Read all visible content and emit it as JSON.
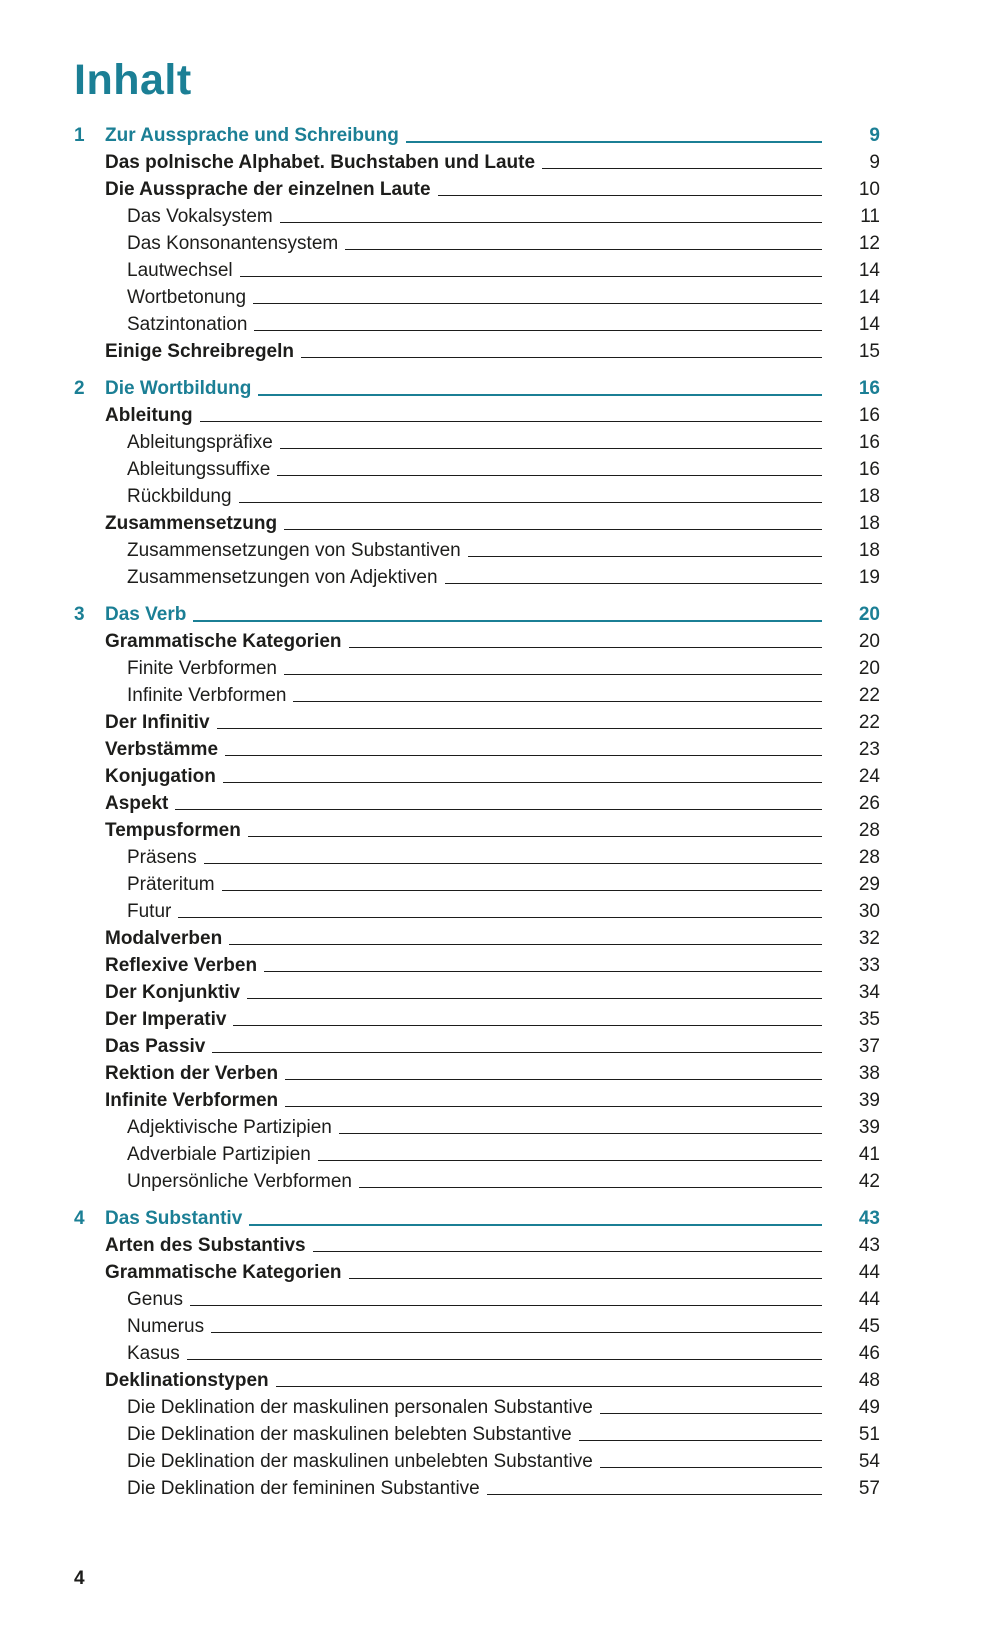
{
  "page": {
    "title": "Inhalt",
    "footer_page_number": "4",
    "accent_color": "#1b7f95",
    "text_color": "#1d1d1b"
  },
  "toc": {
    "chapters": [
      {
        "number": "1",
        "title": "Zur Aussprache und Schreibung",
        "page": "9",
        "entries": [
          {
            "label": "Das polnische Alphabet. Buchstaben und Laute",
            "page": "9",
            "level": 1
          },
          {
            "label": "Die Aussprache der einzelnen Laute",
            "page": "10",
            "level": 1
          },
          {
            "label": "Das Vokalsystem",
            "page": "11",
            "level": 2
          },
          {
            "label": "Das Konsonantensystem",
            "page": "12",
            "level": 2
          },
          {
            "label": "Lautwechsel",
            "page": "14",
            "level": 2
          },
          {
            "label": "Wortbetonung",
            "page": "14",
            "level": 2
          },
          {
            "label": "Satzintonation",
            "page": "14",
            "level": 2
          },
          {
            "label": "Einige Schreibregeln",
            "page": "15",
            "level": 1
          }
        ]
      },
      {
        "number": "2",
        "title": "Die Wortbildung",
        "page": "16",
        "entries": [
          {
            "label": "Ableitung",
            "page": "16",
            "level": 1
          },
          {
            "label": "Ableitungspräfixe",
            "page": "16",
            "level": 2
          },
          {
            "label": "Ableitungssuffixe",
            "page": "16",
            "level": 2
          },
          {
            "label": "Rückbildung",
            "page": "18",
            "level": 2
          },
          {
            "label": "Zusammensetzung",
            "page": "18",
            "level": 1
          },
          {
            "label": "Zusammensetzungen von Substantiven",
            "page": "18",
            "level": 2
          },
          {
            "label": "Zusammensetzungen von Adjektiven",
            "page": "19",
            "level": 2
          }
        ]
      },
      {
        "number": "3",
        "title": "Das Verb",
        "page": "20",
        "entries": [
          {
            "label": "Grammatische Kategorien",
            "page": "20",
            "level": 1
          },
          {
            "label": "Finite Verbformen",
            "page": "20",
            "level": 2
          },
          {
            "label": "Infinite Verbformen",
            "page": "22",
            "level": 2
          },
          {
            "label": "Der Infinitiv",
            "page": "22",
            "level": 1
          },
          {
            "label": "Verbstämme",
            "page": "23",
            "level": 1
          },
          {
            "label": "Konjugation",
            "page": "24",
            "level": 1
          },
          {
            "label": "Aspekt",
            "page": "26",
            "level": 1
          },
          {
            "label": "Tempusformen",
            "page": "28",
            "level": 1
          },
          {
            "label": "Präsens",
            "page": "28",
            "level": 2
          },
          {
            "label": "Präteritum",
            "page": "29",
            "level": 2
          },
          {
            "label": "Futur",
            "page": "30",
            "level": 2
          },
          {
            "label": "Modalverben",
            "page": "32",
            "level": 1
          },
          {
            "label": "Reflexive Verben",
            "page": "33",
            "level": 1
          },
          {
            "label": "Der Konjunktiv",
            "page": "34",
            "level": 1
          },
          {
            "label": "Der Imperativ",
            "page": "35",
            "level": 1
          },
          {
            "label": "Das Passiv",
            "page": "37",
            "level": 1
          },
          {
            "label": "Rektion der Verben",
            "page": "38",
            "level": 1
          },
          {
            "label": "Infinite Verbformen",
            "page": "39",
            "level": 1
          },
          {
            "label": "Adjektivische Partizipien",
            "page": "39",
            "level": 2
          },
          {
            "label": "Adverbiale Partizipien",
            "page": "41",
            "level": 2
          },
          {
            "label": "Unpersönliche Verbformen",
            "page": "42",
            "level": 2
          }
        ]
      },
      {
        "number": "4",
        "title": "Das Substantiv",
        "page": "43",
        "entries": [
          {
            "label": "Arten des Substantivs",
            "page": "43",
            "level": 1
          },
          {
            "label": "Grammatische Kategorien",
            "page": "44",
            "level": 1
          },
          {
            "label": "Genus",
            "page": "44",
            "level": 2
          },
          {
            "label": "Numerus",
            "page": "45",
            "level": 2
          },
          {
            "label": "Kasus",
            "page": "46",
            "level": 2
          },
          {
            "label": "Deklinationstypen",
            "page": "48",
            "level": 1
          },
          {
            "label": "Die Deklination der maskulinen personalen Substantive",
            "page": "49",
            "level": 2
          },
          {
            "label": "Die Deklination der maskulinen belebten Substantive",
            "page": "51",
            "level": 2
          },
          {
            "label": "Die Deklination der maskulinen unbelebten Substantive",
            "page": "54",
            "level": 2
          },
          {
            "label": "Die Deklination der femininen Substantive",
            "page": "57",
            "level": 2
          }
        ]
      }
    ]
  }
}
